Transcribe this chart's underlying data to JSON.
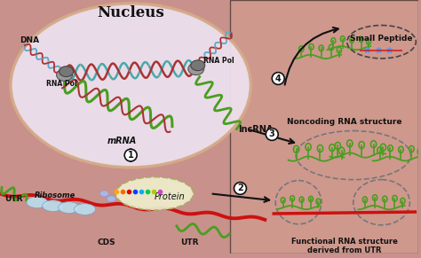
{
  "bg_color": "#c8918b",
  "nucleus_color": "#ede0ee",
  "nucleus_border": "#d4aa88",
  "title_nucleus": "Nucleus",
  "label_dna": "DNA",
  "label_rnapol1": "RNA Pol",
  "label_rnapol2": "RNA Pol",
  "label_mrna": "mRNA",
  "label_lncrna": "lncRNA",
  "label_ribosome": "Ribosome",
  "label_utr_left": "UTR",
  "label_utr_right": "UTR",
  "label_cds": "CDS",
  "label_protein": "Protein",
  "label_noncoding": "Noncoding RNA structure",
  "label_functional": "Functional RNA structure\nderived from UTR",
  "label_small_peptide": "Small Peptide",
  "num1": "1",
  "num2": "2",
  "num3": "3",
  "num4": "4",
  "green_rna": "#4a9e20",
  "red_mrna": "#cc1111",
  "blue_dna": "#55aacc",
  "dark_red_dna": "#aa3333",
  "teal_dna": "#44aaaa",
  "gray_pol": "#888888",
  "light_blue_rib": "#aaccee",
  "text_color": "#111111",
  "arrow_color": "#111111",
  "dashed_circle_color": "#777777",
  "small_peptide_dashed": "#444444",
  "nucleus_right_bg": "#ddc8d8",
  "right_bg": "#d4908a"
}
